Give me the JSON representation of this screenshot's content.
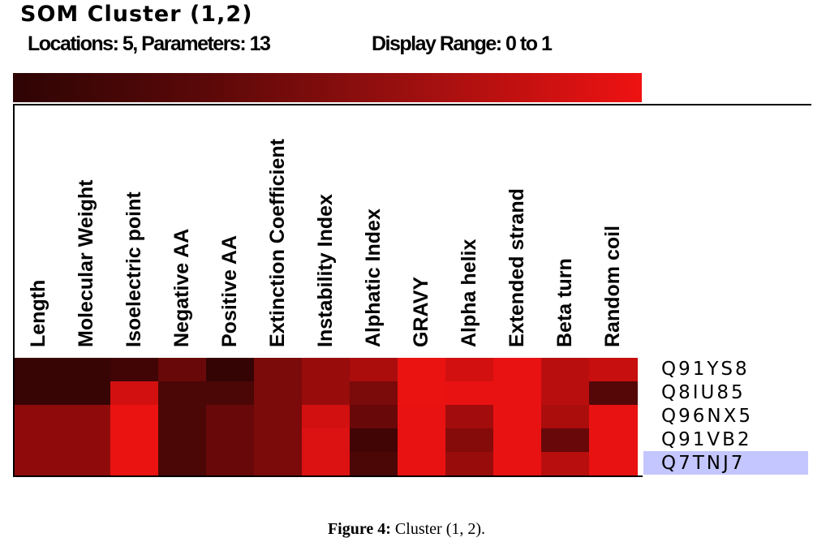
{
  "chart_data": {
    "type": "heatmap",
    "title": "SOM Cluster (1,2)",
    "subtitle_locations": "Locations: 5, Parameters: 13",
    "subtitle_range": "Display Range: 0  to 1",
    "value_range": [
      0,
      1
    ],
    "color_scale": [
      "#2e0404",
      "#ef1212"
    ],
    "columns": [
      "Length",
      "Molecular Weight",
      "Isoelectric point",
      "Negative AA",
      "Positive AA",
      "Extinction Coefficient",
      "Instability Index",
      "Alphatic Index",
      "GRAVY",
      "Alpha helix",
      "Extended strand",
      "Beta turn",
      "Random coil"
    ],
    "rows": [
      "Q91YS8",
      "Q8IU85",
      "Q96NX5",
      "Q91VB2",
      "Q7TNJ7"
    ],
    "highlighted_row": "Q7TNJ7",
    "values": [
      [
        0.05,
        0.05,
        0.1,
        0.3,
        0.03,
        0.4,
        0.55,
        0.65,
        0.98,
        0.85,
        0.97,
        0.72,
        0.8
      ],
      [
        0.05,
        0.05,
        0.85,
        0.15,
        0.15,
        0.4,
        0.55,
        0.4,
        0.98,
        0.97,
        0.97,
        0.72,
        0.2
      ],
      [
        0.5,
        0.5,
        0.98,
        0.15,
        0.3,
        0.4,
        0.85,
        0.3,
        0.97,
        0.6,
        0.97,
        0.65,
        0.97
      ],
      [
        0.5,
        0.5,
        0.98,
        0.15,
        0.3,
        0.4,
        0.9,
        0.1,
        0.97,
        0.45,
        0.97,
        0.3,
        0.97
      ],
      [
        0.5,
        0.5,
        0.98,
        0.15,
        0.3,
        0.4,
        0.9,
        0.15,
        0.97,
        0.55,
        0.97,
        0.72,
        0.97
      ]
    ]
  },
  "caption": {
    "bold": "Figure 4:",
    "text": " Cluster (1, 2)."
  }
}
